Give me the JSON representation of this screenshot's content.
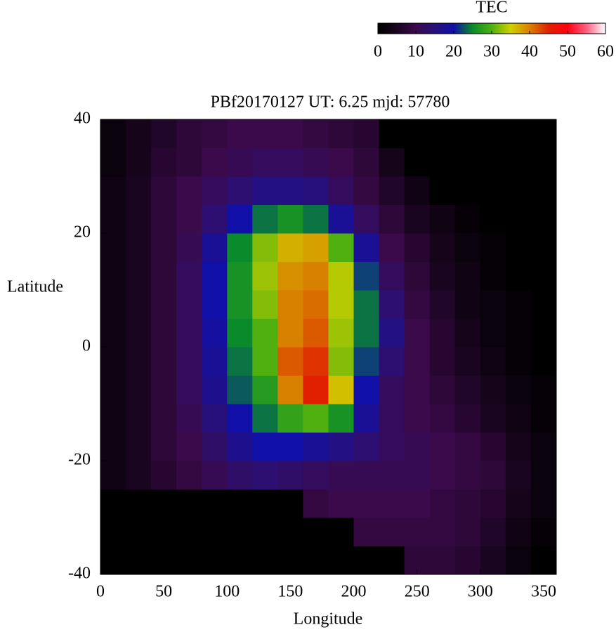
{
  "chart_data": {
    "type": "heatmap",
    "title": "PBf20170127  UT: 6.25  mjd: 57780",
    "x_label": "Longitude",
    "y_label": "Latitude",
    "xbins": [
      0,
      20,
      40,
      60,
      80,
      100,
      120,
      140,
      160,
      180,
      200,
      220,
      240,
      260,
      280,
      300,
      320,
      340,
      360
    ],
    "ybins": [
      -40,
      -35,
      -30,
      -25,
      -20,
      -15,
      -10,
      -5,
      0,
      5,
      10,
      15,
      20,
      25,
      30,
      35,
      40
    ],
    "values": [
      [
        0,
        0,
        0,
        0,
        0,
        0,
        0,
        0,
        0,
        0,
        0,
        0,
        8,
        8,
        7,
        5,
        2,
        0
      ],
      [
        0,
        0,
        0,
        0,
        0,
        0,
        0,
        0,
        0,
        0,
        9,
        9,
        9,
        9,
        8,
        6,
        3,
        1
      ],
      [
        0,
        0,
        0,
        0,
        0,
        0,
        0,
        0,
        9,
        10,
        10,
        10,
        10,
        9,
        8,
        7,
        4,
        2
      ],
      [
        3,
        5,
        7,
        9,
        11,
        13,
        14,
        13,
        12,
        11,
        11,
        11,
        11,
        10,
        9,
        8,
        5,
        2
      ],
      [
        3,
        5,
        8,
        10,
        13,
        17,
        20,
        20,
        18,
        16,
        14,
        12,
        11,
        10,
        9,
        7,
        4,
        2
      ],
      [
        3,
        5,
        8,
        11,
        15,
        20,
        24,
        28,
        30,
        26,
        18,
        12,
        10,
        9,
        7,
        5,
        3,
        1
      ],
      [
        3,
        5,
        8,
        12,
        17,
        23,
        27,
        40,
        45,
        36,
        20,
        12,
        10,
        8,
        6,
        4,
        2,
        1
      ],
      [
        3,
        5,
        8,
        12,
        18,
        24,
        30,
        42,
        44,
        32,
        22,
        14,
        10,
        7,
        5,
        3,
        1,
        0
      ],
      [
        3,
        5,
        8,
        12,
        19,
        25,
        30,
        40,
        42,
        33,
        24,
        16,
        10,
        7,
        4,
        2,
        1,
        0
      ],
      [
        3,
        5,
        8,
        12,
        20,
        26,
        32,
        40,
        41,
        34,
        24,
        14,
        9,
        6,
        3,
        2,
        1,
        0
      ],
      [
        3,
        5,
        8,
        12,
        20,
        26,
        33,
        39,
        40,
        34,
        22,
        12,
        8,
        5,
        3,
        1,
        0,
        0
      ],
      [
        3,
        5,
        8,
        11,
        18,
        25,
        32,
        37,
        38,
        30,
        18,
        10,
        7,
        4,
        2,
        1,
        0,
        0
      ],
      [
        3,
        5,
        8,
        10,
        14,
        20,
        24,
        26,
        24,
        18,
        12,
        8,
        5,
        3,
        1,
        0,
        0,
        0
      ],
      [
        3,
        5,
        8,
        10,
        12,
        14,
        16,
        16,
        15,
        12,
        9,
        6,
        3,
        0,
        0,
        0,
        0,
        0
      ],
      [
        2,
        4,
        7,
        8,
        10,
        11,
        12,
        12,
        11,
        10,
        8,
        4,
        0,
        0,
        0,
        0,
        0,
        0
      ],
      [
        2,
        4,
        6,
        8,
        9,
        10,
        10,
        10,
        9,
        8,
        7,
        0,
        0,
        0,
        0,
        0,
        0,
        0
      ]
    ],
    "xlim": [
      0,
      360
    ],
    "xticks": [
      0,
      50,
      100,
      150,
      200,
      250,
      300,
      350
    ],
    "ylim": [
      -40,
      40
    ],
    "yticks": [
      -40,
      -20,
      0,
      20,
      40
    ],
    "colorbar": {
      "title": "TEC",
      "zlim": [
        0,
        60
      ],
      "ticks": [
        0,
        10,
        20,
        30,
        40,
        50,
        60
      ]
    },
    "colormap": [
      "#000000",
      "#1a0520",
      "#3a0a4a",
      "#28107a",
      "#1010a8",
      "#0a8a2a",
      "#50b010",
      "#d0d000",
      "#d88000",
      "#e02000",
      "#ff0010",
      "#ff6080",
      "#ffffff"
    ]
  }
}
